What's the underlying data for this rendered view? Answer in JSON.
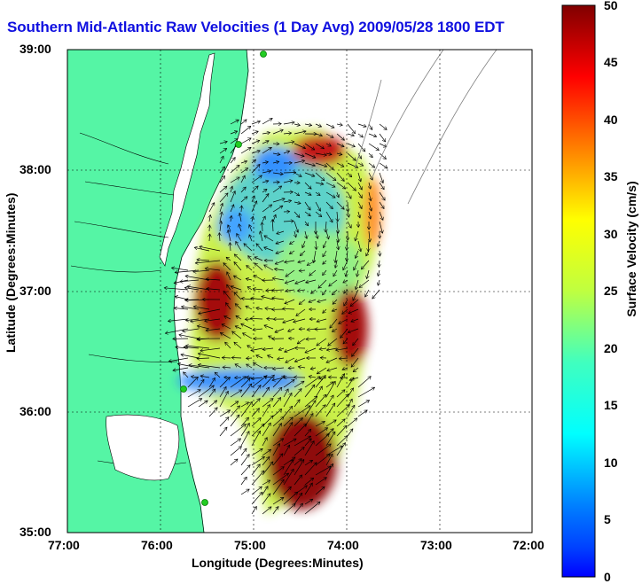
{
  "title": "Southern Mid-Atlantic Raw Velocities (1 Day Avg) 2009/05/28 1800 EDT",
  "map": {
    "x_axis": {
      "label": "Longitude (Degrees:Minutes)",
      "ticks": [
        "77:00",
        "76:00",
        "75:00",
        "74:00",
        "73:00",
        "72:00"
      ]
    },
    "y_axis": {
      "label": "Latitude (Degrees:Minutes)",
      "ticks": [
        "39:00",
        "38:00",
        "37:00",
        "36:00",
        "35:00"
      ]
    },
    "extent": {
      "lon_west": -77.0,
      "lon_east": -72.0,
      "lat_south": 35.0,
      "lat_north": 39.0
    },
    "land_color": "#55f5a5",
    "grid": "dotted",
    "stations_count": 4
  },
  "colorbar": {
    "label": "Surface Velocity (cm/s)",
    "min": 0,
    "max": 50,
    "ticks": [
      "50",
      "45",
      "40",
      "35",
      "30",
      "25",
      "20",
      "15",
      "10",
      "5",
      "0"
    ],
    "colormap": "jet"
  }
}
